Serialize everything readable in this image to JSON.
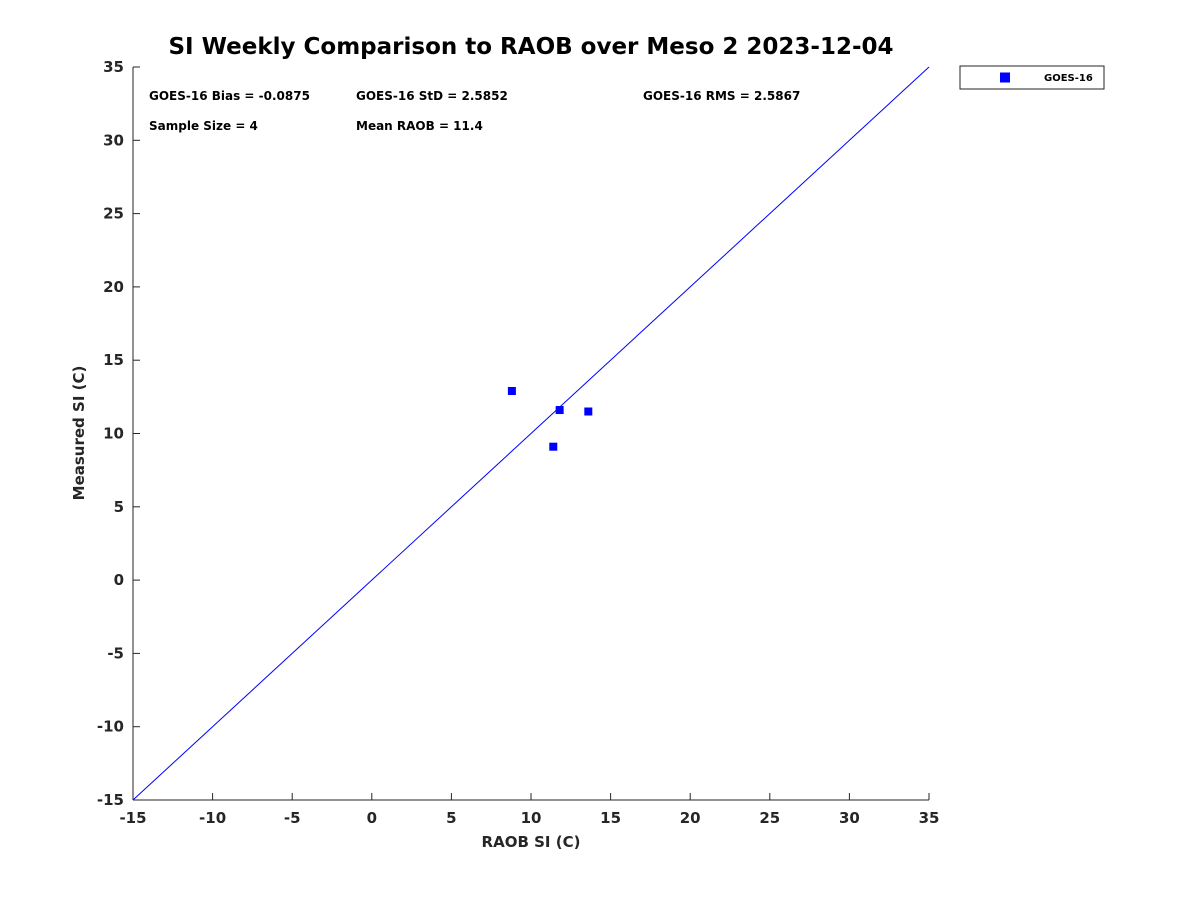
{
  "chart_data": {
    "type": "scatter",
    "title": "SI Weekly Comparison to RAOB over Meso 2 2023-12-04",
    "xlabel": "RAOB SI (C)",
    "ylabel": "Measured SI (C)",
    "xlim": [
      -15,
      35
    ],
    "ylim": [
      -15,
      35
    ],
    "x_ticks": [
      "-15",
      "-10",
      "-5",
      "0",
      "5",
      "10",
      "15",
      "20",
      "25",
      "30",
      "35"
    ],
    "y_ticks": [
      "-15",
      "-10",
      "-5",
      "0",
      "5",
      "10",
      "15",
      "20",
      "25",
      "30",
      "35"
    ],
    "series": [
      {
        "name": "GOES-16",
        "color": "#0000ff",
        "marker": "square",
        "x": [
          8.8,
          11.8,
          13.6,
          11.4
        ],
        "y": [
          12.9,
          11.6,
          11.5,
          9.1
        ]
      }
    ],
    "reference_line": {
      "type": "one-to-one",
      "color": "#0000ff",
      "from": [
        -15,
        -15
      ],
      "to": [
        35,
        35
      ]
    },
    "legend": {
      "placement": "outside-top-right",
      "entries": [
        "GOES-16"
      ]
    },
    "annotations": {
      "bias": "GOES-16 Bias = -0.0875",
      "std": "GOES-16 StD = 2.5852",
      "rms": "GOES-16 RMS = 2.5867",
      "sample_size": "Sample Size = 4",
      "mean_raob": "Mean RAOB = 11.4"
    }
  }
}
